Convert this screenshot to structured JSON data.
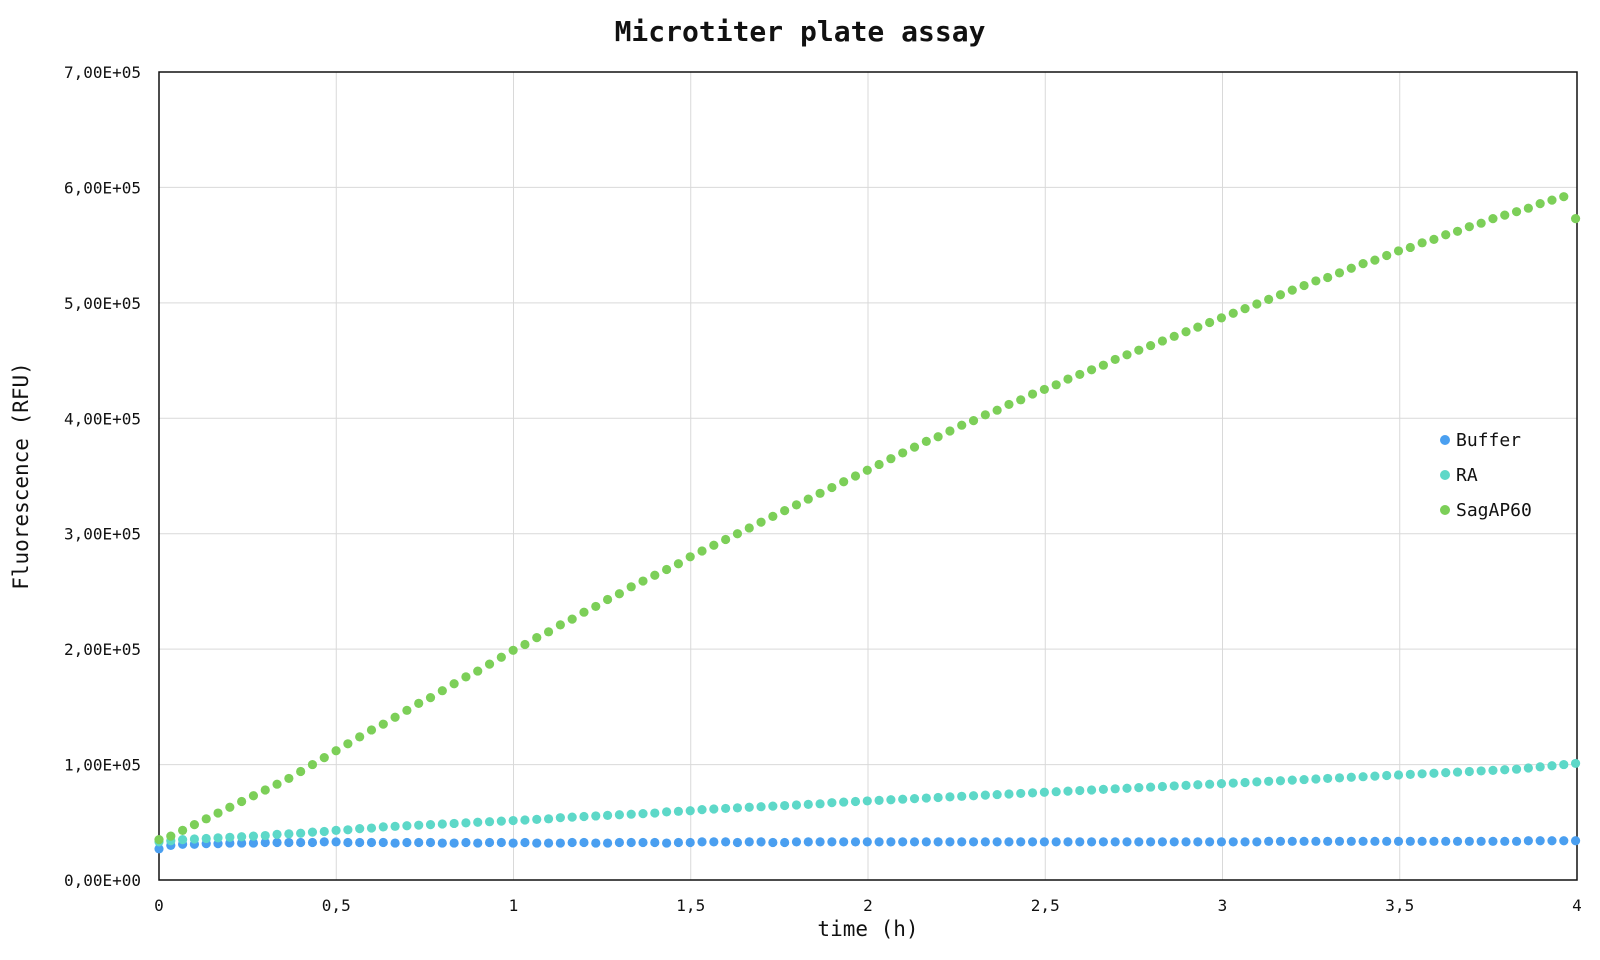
{
  "chart_data": {
    "type": "scatter",
    "title": "Microtiter plate assay",
    "xlabel": "time (h)",
    "ylabel": "Fluorescence (RFU)",
    "xlim": [
      0,
      4
    ],
    "ylim": [
      0,
      700000
    ],
    "grid": true,
    "legend_position": "right",
    "x_ticks": [
      {
        "value": 0,
        "label": "0"
      },
      {
        "value": 0.5,
        "label": "0,5"
      },
      {
        "value": 1,
        "label": "1"
      },
      {
        "value": 1.5,
        "label": "1,5"
      },
      {
        "value": 2,
        "label": "2"
      },
      {
        "value": 2.5,
        "label": "2,5"
      },
      {
        "value": 3,
        "label": "3"
      },
      {
        "value": 3.5,
        "label": "3,5"
      },
      {
        "value": 4,
        "label": "4"
      }
    ],
    "y_ticks": [
      {
        "value": 0,
        "label": "0,00E+00"
      },
      {
        "value": 100000,
        "label": "1,00E+05"
      },
      {
        "value": 200000,
        "label": "2,00E+05"
      },
      {
        "value": 300000,
        "label": "3,00E+05"
      },
      {
        "value": 400000,
        "label": "4,00E+05"
      },
      {
        "value": 500000,
        "label": "5,00E+05"
      },
      {
        "value": 600000,
        "label": "6,00E+05"
      },
      {
        "value": 700000,
        "label": "7,00E+05"
      }
    ],
    "x_step": 0.0333,
    "series": [
      {
        "name": "Buffer",
        "color": "#4a9ff0",
        "values": [
          27000,
          30000,
          31000,
          31000,
          31500,
          31500,
          32000,
          32000,
          32000,
          32500,
          32500,
          32500,
          32500,
          32500,
          33000,
          33000,
          32500,
          32500,
          32500,
          32500,
          32000,
          32500,
          32500,
          32500,
          32000,
          32000,
          32500,
          32000,
          32500,
          32500,
          32000,
          32500,
          32000,
          32000,
          32000,
          32500,
          32500,
          32000,
          32000,
          32500,
          32500,
          32500,
          32500,
          32000,
          32500,
          32500,
          33000,
          33000,
          33000,
          32500,
          33000,
          33000,
          32500,
          32500,
          33000,
          33000,
          33000,
          33000,
          33000,
          33000,
          33000,
          33000,
          33000,
          33000,
          33000,
          33000,
          33000,
          33000,
          33000,
          33000,
          33000,
          33000,
          33000,
          33000,
          33000,
          33000,
          33000,
          33000,
          33000,
          33000,
          33000,
          33000,
          33000,
          33000,
          33000,
          33000,
          33000,
          33000,
          33000,
          33000,
          33000,
          33000,
          33000,
          33000,
          33500,
          33500,
          33500,
          33500,
          33500,
          33500,
          33500,
          33500,
          33500,
          33500,
          33500,
          33500,
          33500,
          33500,
          33500,
          33500,
          33500,
          33500,
          33500,
          33500,
          33500,
          33500,
          34000,
          34000,
          34000,
          34000,
          34000
        ]
      },
      {
        "name": "RA",
        "color": "#5dd8c8",
        "values": [
          33000,
          34000,
          35000,
          35500,
          36000,
          36500,
          37000,
          37500,
          38000,
          38500,
          39500,
          40000,
          40500,
          41500,
          42000,
          43000,
          43500,
          44500,
          45000,
          46000,
          46500,
          47000,
          47500,
          48000,
          48500,
          49000,
          49500,
          50000,
          50500,
          51000,
          51500,
          52000,
          52500,
          53000,
          54000,
          54500,
          55000,
          55500,
          56000,
          56500,
          57000,
          57500,
          58000,
          59000,
          59500,
          60000,
          61000,
          61500,
          62000,
          62500,
          63000,
          63500,
          64000,
          64500,
          65000,
          65500,
          66000,
          67000,
          67500,
          68000,
          68500,
          69000,
          69500,
          70000,
          70500,
          71000,
          71500,
          72000,
          72500,
          73000,
          73500,
          74000,
          74500,
          75000,
          75500,
          76000,
          76500,
          77000,
          77500,
          78000,
          78500,
          79000,
          79500,
          80000,
          80500,
          81000,
          81500,
          82000,
          82500,
          83000,
          83500,
          84000,
          84500,
          85000,
          85500,
          86000,
          86500,
          87000,
          87500,
          88000,
          88500,
          89000,
          89500,
          90000,
          90500,
          91000,
          91500,
          92000,
          92500,
          93000,
          93500,
          94000,
          94500,
          95000,
          95500,
          96000,
          97000,
          98000,
          99000,
          100000,
          101000
        ]
      },
      {
        "name": "SagAP60",
        "color": "#7ccf58",
        "values": [
          35000,
          38000,
          43000,
          48000,
          53000,
          58000,
          63000,
          68000,
          73000,
          78000,
          83000,
          88000,
          94000,
          100000,
          106000,
          112000,
          118000,
          124000,
          130000,
          135000,
          141000,
          147000,
          153000,
          158000,
          164000,
          170000,
          176000,
          181000,
          187000,
          193000,
          199000,
          204000,
          210000,
          215000,
          221000,
          226000,
          232000,
          237000,
          243000,
          248000,
          254000,
          259000,
          264000,
          269000,
          274000,
          280000,
          285000,
          290000,
          295000,
          300000,
          305000,
          310000,
          315000,
          320000,
          325000,
          330000,
          335000,
          340000,
          345000,
          350000,
          355000,
          360000,
          365000,
          370000,
          375000,
          380000,
          384000,
          389000,
          394000,
          398000,
          403000,
          407000,
          412000,
          416000,
          421000,
          425000,
          429000,
          434000,
          438000,
          442000,
          446000,
          451000,
          455000,
          459000,
          463000,
          467000,
          471000,
          475000,
          479000,
          483000,
          487000,
          491000,
          495000,
          499000,
          503000,
          507000,
          511000,
          515000,
          519000,
          522000,
          526000,
          530000,
          534000,
          537000,
          541000,
          545000,
          548000,
          552000,
          555000,
          559000,
          562000,
          566000,
          569000,
          573000,
          576000,
          579000,
          582000,
          586000,
          589000,
          592000,
          573000
        ]
      }
    ]
  }
}
